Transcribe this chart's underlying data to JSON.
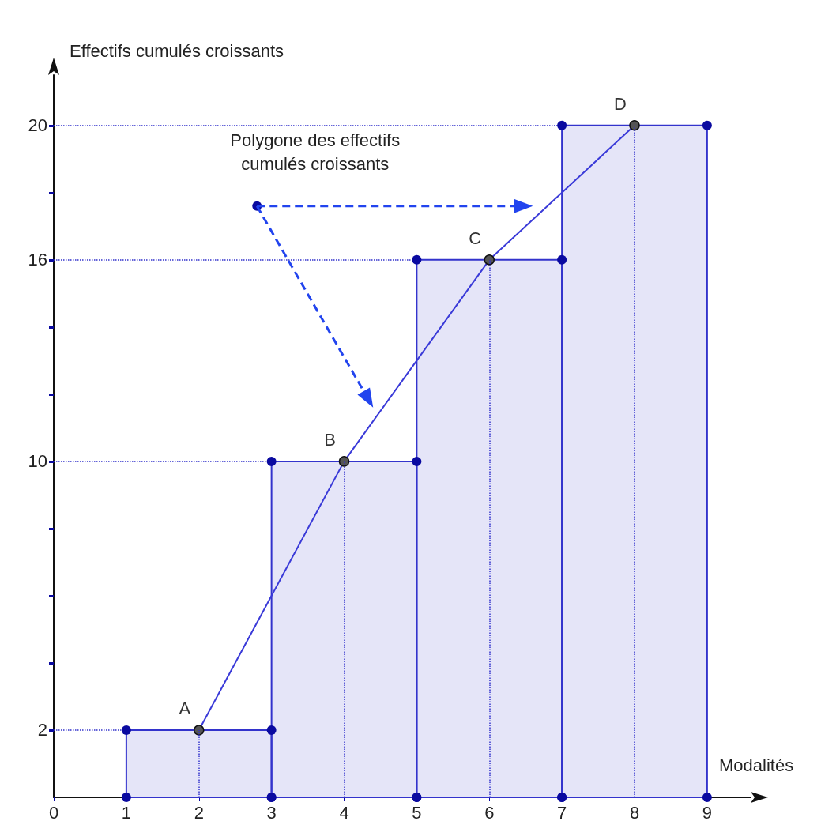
{
  "chart_data": {
    "type": "histogram",
    "xlabel": "Modalités",
    "ylabel": "Effectifs cumulés croissants",
    "series": [
      {
        "bins": [
          1,
          3,
          5,
          7,
          9
        ],
        "values": [
          2,
          10,
          16,
          20
        ],
        "color": "#3333cc"
      },
      {
        "type": "line",
        "x": [
          2,
          4,
          6,
          8
        ],
        "values": [
          2,
          10,
          16,
          20
        ],
        "color": "#3a3ad8"
      }
    ],
    "marker": "circle",
    "xlim": [
      0,
      9.6
    ],
    "ylim": [
      0,
      21.5
    ],
    "xticks": [
      0,
      1,
      2,
      3,
      4,
      5,
      6,
      7,
      8,
      9
    ],
    "yticks": [
      2,
      {
        "value": 4,
        "label": null
      },
      {
        "value": 6,
        "label": null
      },
      {
        "value": 8,
        "label": null
      },
      10,
      {
        "value": 12,
        "label": null
      },
      {
        "value": 14,
        "label": null
      },
      16,
      {
        "value": 18,
        "label": null
      },
      20
    ],
    "ref_lines": [
      {
        "axis": "y",
        "value": 2,
        "label": null,
        "color": "#3333cc",
        "line_style": "dotted"
      },
      {
        "axis": "y",
        "value": 10,
        "label": null,
        "color": "#3333cc",
        "line_style": "dotted"
      },
      {
        "axis": "y",
        "value": 16,
        "label": null,
        "color": "#3333cc",
        "line_style": "dotted"
      },
      {
        "axis": "y",
        "value": 20,
        "label": null,
        "color": "#3333cc",
        "line_style": "dotted"
      },
      {
        "axis": "x",
        "value": 2,
        "label": null,
        "color": "#3333cc",
        "line_style": "dotted"
      },
      {
        "axis": "x",
        "value": 4,
        "label": null,
        "color": "#3333cc",
        "line_style": "dotted"
      },
      {
        "axis": "x",
        "value": 6,
        "label": null,
        "color": "#3333cc",
        "line_style": "dotted"
      },
      {
        "axis": "x",
        "value": 8,
        "label": null,
        "color": "#3333cc",
        "line_style": "dotted"
      }
    ],
    "annotations": [
      {
        "text": "A",
        "x": 2,
        "y": 2
      },
      {
        "text": "B",
        "x": 4,
        "y": 10
      },
      {
        "text": "C",
        "x": 6,
        "y": 16
      },
      {
        "text": "D",
        "x": 8,
        "y": 20
      },
      "Polygone des effectifs\ncumulés croissants"
    ],
    "grid": false
  }
}
